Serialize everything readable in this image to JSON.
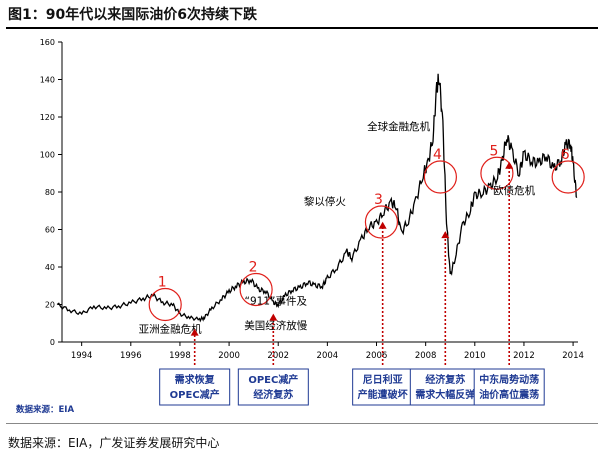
{
  "title": "图1：90年代以来国际油价6次持续下跌",
  "footer": "数据来源：EIA，广发证券发展研究中心",
  "inner_source": "数据来源：EIA",
  "colors": {
    "line": "#000000",
    "circle": "#e0201b",
    "box_border": "#1f3a93",
    "box_text": "#1f3a93",
    "arrow": "#c00000"
  },
  "chart_data": {
    "type": "line",
    "series": [
      {
        "name": "oil price",
        "x": [
          1993.0,
          1993.5,
          1994.0,
          1994.5,
          1995.0,
          1995.5,
          1996.0,
          1996.5,
          1996.9,
          1997.3,
          1997.7,
          1998.0,
          1998.4,
          1998.8,
          1999.0,
          1999.3,
          1999.7,
          2000.0,
          2000.3,
          2000.6,
          2000.9,
          2001.2,
          2001.5,
          2001.8,
          2002.0,
          2002.3,
          2002.6,
          2002.9,
          2003.2,
          2003.5,
          2003.8,
          2004.0,
          2004.4,
          2004.8,
          2005.0,
          2005.4,
          2005.7,
          2006.0,
          2006.3,
          2006.6,
          2006.8,
          2007.0,
          2007.3,
          2007.6,
          2007.9,
          2008.1,
          2008.3,
          2008.45,
          2008.55,
          2008.7,
          2008.85,
          2009.0,
          2009.2,
          2009.5,
          2009.8,
          2010.0,
          2010.3,
          2010.6,
          2010.9,
          2011.1,
          2011.3,
          2011.5,
          2011.8,
          2012.0,
          2012.3,
          2012.6,
          2012.9,
          2013.2,
          2013.5,
          2013.7,
          2013.9,
          2014.0,
          2014.15
        ],
        "y": [
          20,
          17,
          15,
          19,
          18,
          19,
          21,
          23,
          25,
          21,
          20,
          15,
          13,
          12,
          13,
          18,
          23,
          27,
          30,
          32,
          33,
          28,
          27,
          21,
          20,
          25,
          28,
          29,
          32,
          30,
          30,
          34,
          40,
          48,
          45,
          55,
          62,
          63,
          70,
          74,
          73,
          58,
          65,
          75,
          90,
          95,
          110,
          135,
          142,
          115,
          65,
          35,
          45,
          62,
          70,
          78,
          80,
          82,
          88,
          95,
          110,
          102,
          90,
          100,
          97,
          95,
          100,
          92,
          97,
          105,
          106,
          95,
          77
        ]
      }
    ],
    "xlim": [
      1993.2,
      2014.2
    ],
    "ylim": [
      0,
      160
    ],
    "xticks": [
      1994,
      1996,
      1998,
      2000,
      2002,
      2004,
      2006,
      2008,
      2010,
      2012,
      2014
    ],
    "yticks": [
      0,
      20,
      40,
      60,
      80,
      100,
      120,
      140,
      160
    ],
    "circles": [
      {
        "number": "1",
        "x": 1997.4,
        "y": 20
      },
      {
        "number": "2",
        "x": 2001.1,
        "y": 28
      },
      {
        "number": "3",
        "x": 2006.2,
        "y": 64
      },
      {
        "number": "4",
        "x": 2008.6,
        "y": 88
      },
      {
        "number": "5",
        "x": 2010.9,
        "y": 90
      },
      {
        "number": "6",
        "x": 2013.8,
        "y": 88
      }
    ],
    "annotations": [
      {
        "text": "亚洲金融危机",
        "x": 1997.6,
        "y": 5
      },
      {
        "text": "“911”事件及",
        "x": 2001.9,
        "y": 20
      },
      {
        "text": "美国经济放慢",
        "x": 2001.9,
        "y": 7
      },
      {
        "text": "黎以停火",
        "x": 2003.9,
        "y": 73
      },
      {
        "text": "全球金融危机",
        "x": 2006.9,
        "y": 113
      },
      {
        "text": "欧债危机",
        "x": 2011.6,
        "y": 79
      }
    ],
    "arrows": [
      {
        "x": 1998.6,
        "box": [
          "需求恢复",
          "OPEC减产"
        ]
      },
      {
        "x": 2001.8,
        "box": [
          "OPEC减产",
          "经济复苏"
        ]
      },
      {
        "x": 2006.25,
        "box": [
          "尼日利亚",
          "产能遭破坏"
        ]
      },
      {
        "x": 2008.8,
        "box": [
          "经济复苏",
          "需求大幅反弹"
        ]
      },
      {
        "x": 2011.4,
        "box": [
          "中东局势动荡",
          "油价高位震荡"
        ]
      }
    ]
  }
}
